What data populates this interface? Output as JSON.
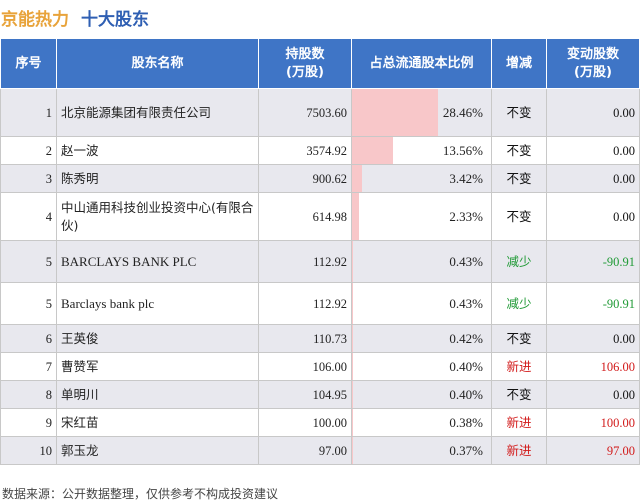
{
  "header": {
    "stock_name": "京能热力",
    "title": "十大股东"
  },
  "table": {
    "columns": [
      "序号",
      "股东名称",
      "持股数\n(万股)",
      "占总流通股本比例",
      "增减",
      "变动股数\n(万股)"
    ],
    "rows": [
      {
        "idx": "1",
        "name": "北京能源集团有限责任公司",
        "shares": "7503.60",
        "ratio": "28.46%",
        "ratio_value": 28.46,
        "change": "不变",
        "change_type": "same",
        "delta": "0.00"
      },
      {
        "idx": "2",
        "name": "赵一波",
        "shares": "3574.92",
        "ratio": "13.56%",
        "ratio_value": 13.56,
        "change": "不变",
        "change_type": "same",
        "delta": "0.00"
      },
      {
        "idx": "3",
        "name": "陈秀明",
        "shares": "900.62",
        "ratio": "3.42%",
        "ratio_value": 3.42,
        "change": "不变",
        "change_type": "same",
        "delta": "0.00"
      },
      {
        "idx": "4",
        "name": "中山通用科技创业投资中心(有限合伙)",
        "shares": "614.98",
        "ratio": "2.33%",
        "ratio_value": 2.33,
        "change": "不变",
        "change_type": "same",
        "delta": "0.00"
      },
      {
        "idx": "5",
        "name": "BARCLAYS BANK PLC",
        "shares": "112.92",
        "ratio": "0.43%",
        "ratio_value": 0.43,
        "change": "减少",
        "change_type": "down",
        "delta": "-90.91"
      },
      {
        "idx": "5",
        "name": "Barclays bank plc",
        "shares": "112.92",
        "ratio": "0.43%",
        "ratio_value": 0.43,
        "change": "减少",
        "change_type": "down",
        "delta": "-90.91"
      },
      {
        "idx": "6",
        "name": "王英俊",
        "shares": "110.73",
        "ratio": "0.42%",
        "ratio_value": 0.42,
        "change": "不变",
        "change_type": "same",
        "delta": "0.00"
      },
      {
        "idx": "7",
        "name": "曹赞军",
        "shares": "106.00",
        "ratio": "0.40%",
        "ratio_value": 0.4,
        "change": "新进",
        "change_type": "new",
        "delta": "106.00"
      },
      {
        "idx": "8",
        "name": "单明川",
        "shares": "104.95",
        "ratio": "0.40%",
        "ratio_value": 0.4,
        "change": "不变",
        "change_type": "same",
        "delta": "0.00"
      },
      {
        "idx": "9",
        "name": "宋红苗",
        "shares": "100.00",
        "ratio": "0.38%",
        "ratio_value": 0.38,
        "change": "新进",
        "change_type": "new",
        "delta": "100.00"
      },
      {
        "idx": "10",
        "name": "郭玉龙",
        "shares": "97.00",
        "ratio": "0.37%",
        "ratio_value": 0.37,
        "change": "新进",
        "change_type": "new",
        "delta": "97.00"
      }
    ]
  },
  "colors": {
    "header_bg": "#3f75c6",
    "bar": "#f8c7c9",
    "down": "#1f9a35",
    "new": "#d21a1a",
    "title_stock": "#e8a33a",
    "title_main": "#2f5fb3"
  },
  "footer": "数据来源：公开数据整理，仅供参考不构成投资建议"
}
